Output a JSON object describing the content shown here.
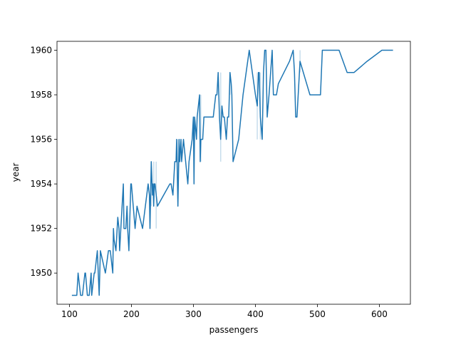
{
  "chart_data": {
    "type": "line",
    "title": "",
    "xlabel": "passengers",
    "ylabel": "year",
    "xlim": [
      80,
      650
    ],
    "ylim": [
      1948.6,
      1960.4
    ],
    "xticks": [
      100,
      200,
      300,
      400,
      500,
      600
    ],
    "yticks": [
      1950,
      1952,
      1954,
      1956,
      1958,
      1960
    ],
    "xtick_labels": [
      "100",
      "200",
      "300",
      "400",
      "500",
      "600"
    ],
    "ytick_labels": [
      "1950",
      "1952",
      "1954",
      "1956",
      "1958",
      "1960"
    ],
    "grid": false,
    "legend": "none",
    "series": [
      {
        "color": "#1f77b4",
        "points": [
          [
            104,
            1949
          ],
          [
            112,
            1949
          ],
          [
            114,
            1950
          ],
          [
            118,
            1949
          ],
          [
            121,
            1949
          ],
          [
            125,
            1950
          ],
          [
            126,
            1950
          ],
          [
            129,
            1949
          ],
          [
            132,
            1949
          ],
          [
            135,
            1950
          ],
          [
            136,
            1949
          ],
          [
            140,
            1950
          ],
          [
            141,
            1950
          ],
          [
            145,
            1951
          ],
          [
            148,
            1949
          ],
          [
            150,
            1951
          ],
          [
            158,
            1950
          ],
          [
            163,
            1951
          ],
          [
            166,
            1951
          ],
          [
            170,
            1950
          ],
          [
            171,
            1952
          ],
          [
            172,
            1951.5
          ],
          [
            175,
            1951
          ],
          [
            178,
            1952.5
          ],
          [
            180,
            1952
          ],
          [
            181,
            1951
          ],
          [
            183,
            1952
          ],
          [
            187,
            1954
          ],
          [
            188,
            1952
          ],
          [
            191,
            1952
          ],
          [
            193,
            1953
          ],
          [
            194,
            1952
          ],
          [
            196,
            1951
          ],
          [
            199,
            1954
          ],
          [
            200,
            1954
          ],
          [
            203,
            1953
          ],
          [
            206,
            1952
          ],
          [
            209,
            1953
          ],
          [
            218,
            1952
          ],
          [
            227,
            1954
          ],
          [
            229,
            1953.5
          ],
          [
            230,
            1952
          ],
          [
            232,
            1955
          ],
          [
            234,
            1953.5
          ],
          [
            235,
            1954
          ],
          [
            236,
            1953
          ],
          [
            237,
            1954
          ],
          [
            238,
            1954
          ],
          [
            242,
            1953
          ],
          [
            262,
            1954
          ],
          [
            264,
            1954
          ],
          [
            267,
            1953.5
          ],
          [
            270,
            1955
          ],
          [
            272,
            1955
          ],
          [
            273,
            1956
          ],
          [
            275,
            1953
          ],
          [
            277,
            1956
          ],
          [
            278,
            1955
          ],
          [
            280,
            1956
          ],
          [
            281,
            1955
          ],
          [
            284,
            1956
          ],
          [
            291,
            1954
          ],
          [
            293,
            1955
          ],
          [
            298,
            1956
          ],
          [
            300,
            1957
          ],
          [
            301,
            1954
          ],
          [
            302,
            1957
          ],
          [
            305,
            1956
          ],
          [
            306,
            1957
          ],
          [
            310,
            1958
          ],
          [
            311,
            1955
          ],
          [
            312,
            1956
          ],
          [
            315,
            1956
          ],
          [
            317,
            1957
          ],
          [
            318,
            1957
          ],
          [
            329,
            1957
          ],
          [
            332,
            1957
          ],
          [
            336,
            1958
          ],
          [
            338,
            1958
          ],
          [
            340,
            1959
          ],
          [
            342,
            1957
          ],
          [
            344,
            1956
          ],
          [
            346,
            1957.5
          ],
          [
            348,
            1957
          ],
          [
            350,
            1957
          ],
          [
            353,
            1956
          ],
          [
            355,
            1957
          ],
          [
            357,
            1957
          ],
          [
            359,
            1959
          ],
          [
            361,
            1958.5
          ],
          [
            362,
            1958
          ],
          [
            364,
            1955
          ],
          [
            373,
            1956
          ],
          [
            380,
            1958
          ],
          [
            390,
            1960
          ],
          [
            400,
            1958
          ],
          [
            403,
            1957.5
          ],
          [
            405,
            1959
          ],
          [
            406,
            1959
          ],
          [
            408,
            1957
          ],
          [
            411,
            1956
          ],
          [
            413,
            1959
          ],
          [
            415,
            1960
          ],
          [
            417,
            1960
          ],
          [
            419,
            1957
          ],
          [
            422,
            1958
          ],
          [
            427,
            1960
          ],
          [
            429,
            1958
          ],
          [
            432,
            1958
          ],
          [
            434,
            1958
          ],
          [
            437,
            1958.5
          ],
          [
            455,
            1959.5
          ],
          [
            461,
            1960
          ],
          [
            463,
            1959
          ],
          [
            465,
            1957
          ],
          [
            467,
            1957
          ],
          [
            472,
            1959.5
          ],
          [
            488,
            1958
          ],
          [
            493,
            1958
          ],
          [
            498,
            1958
          ],
          [
            505,
            1958
          ],
          [
            508,
            1960
          ],
          [
            520,
            1960
          ],
          [
            535,
            1960
          ],
          [
            548,
            1959
          ],
          [
            559,
            1959
          ],
          [
            580,
            1959.5
          ],
          [
            604,
            1960
          ],
          [
            606,
            1960
          ],
          [
            612,
            1960
          ],
          [
            622,
            1960
          ]
        ]
      }
    ],
    "confidence_band": {
      "color": "#1f77b4",
      "segments": [
        [
          232,
          1953,
          1955
        ],
        [
          236,
          1953,
          1955
        ],
        [
          240,
          1952,
          1955
        ],
        [
          275,
          1953,
          1956
        ],
        [
          312,
          1955,
          1958
        ],
        [
          344,
          1955,
          1959
        ],
        [
          359,
          1958,
          1959
        ],
        [
          403,
          1956,
          1959
        ],
        [
          408,
          1956,
          1959
        ],
        [
          472,
          1959,
          1960
        ]
      ]
    }
  }
}
